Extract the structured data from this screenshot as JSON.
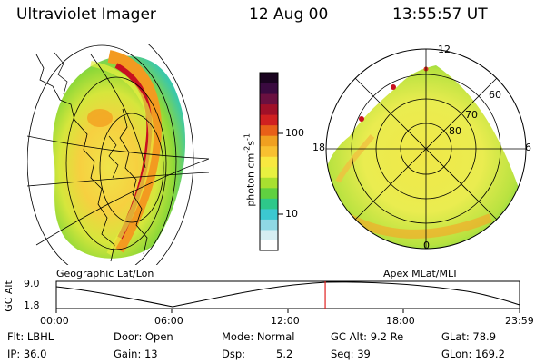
{
  "header": {
    "title": "Ultraviolet Imager",
    "date": "12 Aug 00",
    "time": "13:55:57 UT"
  },
  "left_panel": {
    "caption": "Geographic Lat/Lon"
  },
  "right_panel": {
    "caption": "Apex MLat/MLT",
    "mlt_labels": {
      "top": "12",
      "left": "18",
      "right": "6",
      "bottom": "0"
    },
    "lat_labels": [
      "80",
      "70",
      "60"
    ]
  },
  "colorbar": {
    "unit": "photon cm^-2 s^-1",
    "unit_main": "photon cm",
    "unit_exp1": "-2",
    "unit_mid": "s",
    "unit_exp2": "-1",
    "scale": "log",
    "ticks": [
      "100",
      "10"
    ],
    "colors": [
      "#ffffff",
      "#d6eef2",
      "#8fd8e4",
      "#3cc8d0",
      "#2ec88a",
      "#60d040",
      "#a8e030",
      "#e8f040",
      "#f8e840",
      "#f8c030",
      "#f0a020",
      "#e86018",
      "#d02020",
      "#a01028",
      "#6a1040",
      "#3a0a40",
      "#1a0420"
    ]
  },
  "timeline": {
    "y_label": "GC Alt",
    "y_ticks": [
      "9.0",
      "1.8"
    ],
    "x_ticks": [
      "00:00",
      "06:00",
      "12:00",
      "18:00",
      "23:59"
    ],
    "current_time": "13:55:57",
    "current_fraction": 0.5805,
    "marker_color": "#e02020"
  },
  "footer": {
    "row1": {
      "flt": "Flt: LBHL",
      "door": "Door: Open",
      "mode": "Mode: Normal",
      "gcalt": "GC Alt: 9.2 Re",
      "glat": "GLat:   78.9"
    },
    "row2": {
      "ip": "IP: 36.0",
      "gain": "Gain: 13",
      "dsp_label": "Dsp:",
      "dsp_value": "5.2",
      "seq": "Seq: 39",
      "glon": "GLon: 169.2"
    }
  }
}
